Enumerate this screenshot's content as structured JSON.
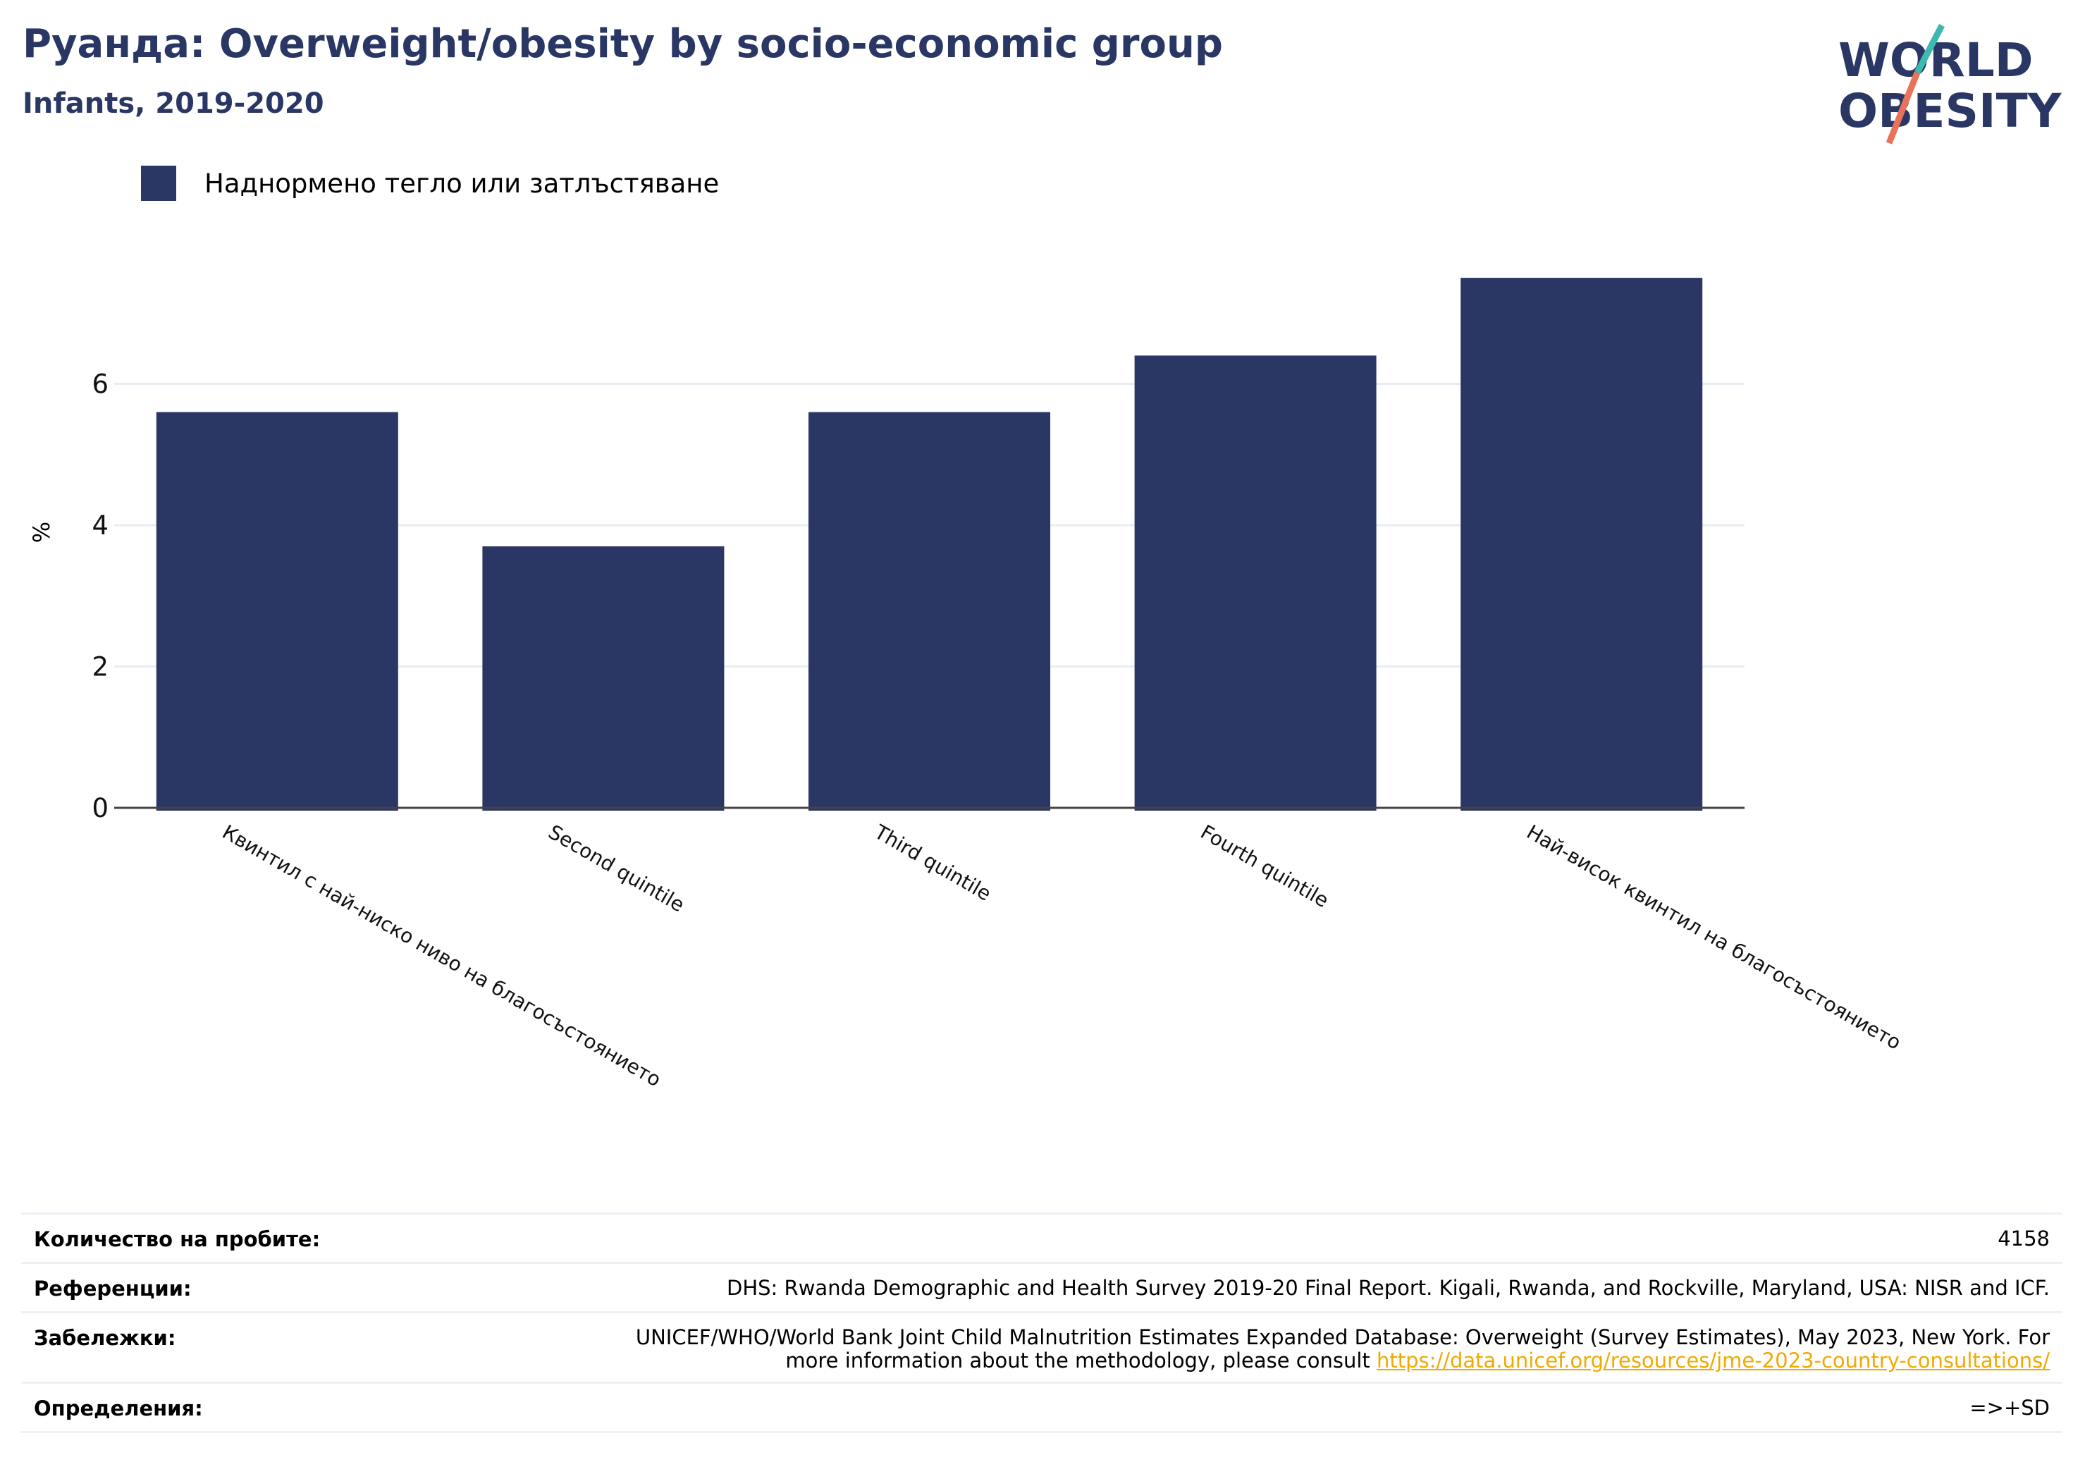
{
  "header": {
    "title": "Руанда: Overweight/obesity by socio-economic group",
    "subtitle": "Infants, 2019-2020"
  },
  "logo": {
    "line1": "WORLD",
    "line2": "OBESITY",
    "colors": {
      "text": "#2a3664",
      "slash_teal": "#3fb8b0",
      "slash_orange": "#e8735a"
    }
  },
  "legend": {
    "label": "Наднормено тегло или затлъстяване",
    "color": "#2a3664"
  },
  "chart_data": {
    "type": "bar",
    "categories": [
      "Квинтил с най-ниско ниво на благосъстоянието",
      "Second quintile",
      "Third quintile",
      "Fourth quintile",
      "Най-висок квинтил на благосъстоянието"
    ],
    "series": [
      {
        "name": "Наднормено тегло или затлъстяване",
        "values": [
          5.6,
          3.7,
          5.6,
          6.4,
          7.5
        ],
        "color": "#2a3664"
      }
    ],
    "ylabel": "%",
    "ylim": [
      0,
      8
    ],
    "yticks": [
      0,
      2,
      4,
      6
    ],
    "grid": true,
    "legend_position": "top-left"
  },
  "info": {
    "rows": [
      {
        "key": "Количество на пробите:",
        "value": "4158"
      },
      {
        "key": "Референции:",
        "value": "DHS: Rwanda Demographic and Health Survey 2019-20 Final Report. Kigali, Rwanda, and Rockville, Maryland, USA: NISR and ICF."
      },
      {
        "key": "Забележки:",
        "value_line1": "UNICEF/WHO/World Bank Joint Child Malnutrition Estimates Expanded Database: Overweight (Survey Estimates), May 2023, New York. For",
        "value_line2": "more information about the methodology, please consult ",
        "link": "https://data.unicef.org/resources/jme-2023-country-consultations/"
      },
      {
        "key": "Определения:",
        "value": "=>+SD"
      }
    ]
  }
}
